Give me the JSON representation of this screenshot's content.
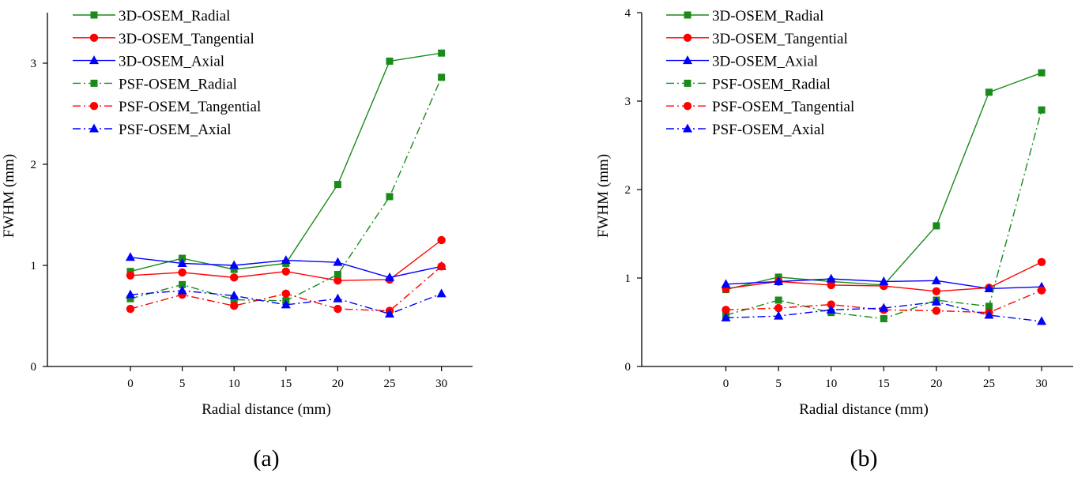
{
  "chart_data": [
    {
      "type": "line",
      "panel_label": "(a)",
      "xlabel": "Radial distance (mm)",
      "ylabel": "FWHM (mm)",
      "xlim": [
        -8,
        33
      ],
      "ylim": [
        0,
        3.5
      ],
      "x_ticks": [
        0,
        5,
        10,
        15,
        20,
        25,
        30
      ],
      "x_tick_labels": [
        "0",
        "5",
        "10",
        "15",
        "20",
        "25",
        "30"
      ],
      "y_ticks": [
        0,
        1,
        2,
        3
      ],
      "y_tick_labels": [
        "0",
        "1",
        "2",
        "3"
      ],
      "grid": false,
      "legend_position": "top-left",
      "x": [
        0,
        5,
        10,
        15,
        20,
        25,
        30
      ],
      "series": [
        {
          "name": "3D-OSEM_Radial",
          "color": "#1a8a1a",
          "dash": "solid",
          "marker": "square",
          "values": [
            0.94,
            1.07,
            0.96,
            1.02,
            1.8,
            3.02,
            3.1
          ]
        },
        {
          "name": "3D-OSEM_Tangential",
          "color": "#ff0000",
          "dash": "solid",
          "marker": "circle",
          "values": [
            0.9,
            0.93,
            0.88,
            0.94,
            0.85,
            0.86,
            1.25
          ]
        },
        {
          "name": "3D-OSEM_Axial",
          "color": "#0000ff",
          "dash": "solid",
          "marker": "triangle",
          "values": [
            1.08,
            1.02,
            1.0,
            1.05,
            1.03,
            0.88,
            0.99
          ]
        },
        {
          "name": "PSF-OSEM_Radial",
          "color": "#1a8a1a",
          "dash": "dashdot",
          "marker": "square",
          "values": [
            0.67,
            0.81,
            0.66,
            0.65,
            0.91,
            1.68,
            2.86
          ]
        },
        {
          "name": "PSF-OSEM_Tangential",
          "color": "#ff0000",
          "dash": "dashdot",
          "marker": "circle",
          "values": [
            0.57,
            0.71,
            0.6,
            0.72,
            0.57,
            0.55,
            0.99
          ]
        },
        {
          "name": "PSF-OSEM_Axial",
          "color": "#0000ff",
          "dash": "dashdot",
          "marker": "triangle",
          "values": [
            0.71,
            0.75,
            0.7,
            0.61,
            0.67,
            0.52,
            0.72
          ]
        }
      ]
    },
    {
      "type": "line",
      "panel_label": "(b)",
      "xlabel": "Radial distance (mm)",
      "ylabel": "FWHM (mm)",
      "xlim": [
        -8,
        33
      ],
      "ylim": [
        0,
        4
      ],
      "x_ticks": [
        0,
        5,
        10,
        15,
        20,
        25,
        30
      ],
      "x_tick_labels": [
        "0",
        "5",
        "10",
        "15",
        "20",
        "25",
        "30"
      ],
      "y_ticks": [
        0,
        1,
        2,
        3,
        4
      ],
      "y_tick_labels": [
        "0",
        "1",
        "2",
        "3",
        "4"
      ],
      "grid": false,
      "legend_position": "top-left",
      "x": [
        0,
        5,
        10,
        15,
        20,
        25,
        30
      ],
      "series": [
        {
          "name": "3D-OSEM_Radial",
          "color": "#1a8a1a",
          "dash": "solid",
          "marker": "square",
          "values": [
            0.87,
            1.01,
            0.96,
            0.92,
            1.59,
            3.1,
            3.32
          ]
        },
        {
          "name": "3D-OSEM_Tangential",
          "color": "#ff0000",
          "dash": "solid",
          "marker": "circle",
          "values": [
            0.88,
            0.96,
            0.92,
            0.91,
            0.85,
            0.89,
            1.18
          ]
        },
        {
          "name": "3D-OSEM_Axial",
          "color": "#0000ff",
          "dash": "solid",
          "marker": "triangle",
          "values": [
            0.93,
            0.96,
            0.99,
            0.96,
            0.97,
            0.88,
            0.9
          ]
        },
        {
          "name": "PSF-OSEM_Radial",
          "color": "#1a8a1a",
          "dash": "dashdot",
          "marker": "square",
          "values": [
            0.58,
            0.75,
            0.61,
            0.54,
            0.75,
            0.68,
            2.9
          ]
        },
        {
          "name": "PSF-OSEM_Tangential",
          "color": "#ff0000",
          "dash": "dashdot",
          "marker": "circle",
          "values": [
            0.64,
            0.66,
            0.7,
            0.64,
            0.63,
            0.61,
            0.86
          ]
        },
        {
          "name": "PSF-OSEM_Axial",
          "color": "#0000ff",
          "dash": "dashdot",
          "marker": "triangle",
          "values": [
            0.55,
            0.57,
            0.64,
            0.66,
            0.73,
            0.58,
            0.51
          ]
        }
      ]
    }
  ]
}
